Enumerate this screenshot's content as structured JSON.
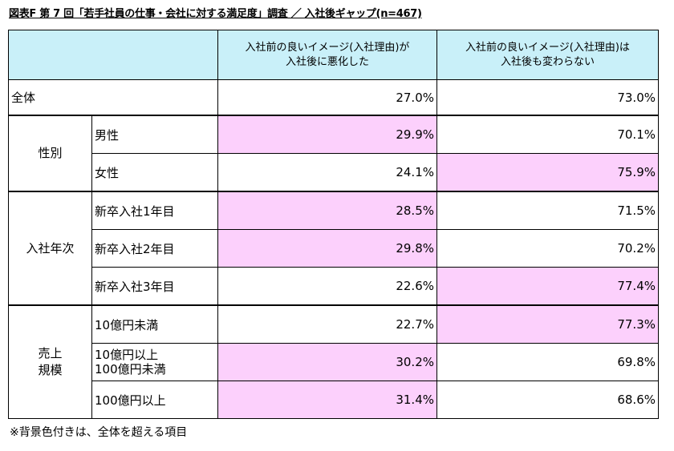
{
  "title": "図表F 第 7 回「若手社員の仕事・会社に対する満足度」調査 ／ 入社後ギャップ(n=467)",
  "header": {
    "col1": "入社前の良いイメージ(入社理由)が入社後に悪化した",
    "col2": "入社前の良いイメージ(入社理由)は入社後も変わらない"
  },
  "highlight_color": "#fcd0fc",
  "header_color": "#c9f0f9",
  "chart_data": {
    "type": "table",
    "columns": [
      "入社前の良いイメージ(入社理由)が入社後に悪化した",
      "入社前の良いイメージ(入社理由)は入社後も変わらない"
    ],
    "rows": [
      {
        "group": "",
        "label": "全体",
        "values": [
          "27.0%",
          "73.0%"
        ],
        "highlight": [
          false,
          false
        ]
      },
      {
        "group": "性別",
        "label": "男性",
        "values": [
          "29.9%",
          "70.1%"
        ],
        "highlight": [
          true,
          false
        ]
      },
      {
        "group": "性別",
        "label": "女性",
        "values": [
          "24.1%",
          "75.9%"
        ],
        "highlight": [
          false,
          true
        ]
      },
      {
        "group": "入社年次",
        "label": "新卒入社1年目",
        "values": [
          "28.5%",
          "71.5%"
        ],
        "highlight": [
          true,
          false
        ]
      },
      {
        "group": "入社年次",
        "label": "新卒入社2年目",
        "values": [
          "29.8%",
          "70.2%"
        ],
        "highlight": [
          true,
          false
        ]
      },
      {
        "group": "入社年次",
        "label": "新卒入社3年目",
        "values": [
          "22.6%",
          "77.4%"
        ],
        "highlight": [
          false,
          true
        ]
      },
      {
        "group": "売上規模",
        "label": "10億円未満",
        "values": [
          "22.7%",
          "77.3%"
        ],
        "highlight": [
          false,
          true
        ]
      },
      {
        "group": "売上規模",
        "label": "10億円以上100億円未満",
        "values": [
          "30.2%",
          "69.8%"
        ],
        "highlight": [
          true,
          false
        ]
      },
      {
        "group": "売上規模",
        "label": "100億円以上",
        "values": [
          "31.4%",
          "68.6%"
        ],
        "highlight": [
          true,
          false
        ]
      }
    ]
  },
  "footnote": "※背景色付きは、全体を超える項目"
}
